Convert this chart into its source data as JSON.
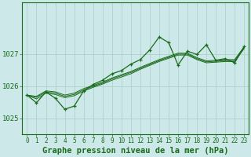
{
  "bg_color": "#cce8e8",
  "grid_color": "#aacccc",
  "line_color": "#1a6b1a",
  "title": "Graphe pression niveau de la mer (hPa)",
  "ylabel_ticks": [
    1025,
    1026,
    1027
  ],
  "xlim": [
    -0.5,
    23.5
  ],
  "ylim": [
    1024.5,
    1028.6
  ],
  "x": [
    0,
    1,
    2,
    3,
    4,
    5,
    6,
    7,
    8,
    9,
    10,
    11,
    12,
    13,
    14,
    15,
    16,
    17,
    18,
    19,
    20,
    21,
    22,
    23
  ],
  "main_series": [
    1025.72,
    1025.48,
    1025.82,
    1025.62,
    1025.28,
    1025.38,
    1025.85,
    1026.05,
    1026.18,
    1026.38,
    1026.48,
    1026.68,
    1026.82,
    1027.12,
    1027.52,
    1027.35,
    1026.65,
    1027.08,
    1026.98,
    1027.28,
    1026.8,
    1026.85,
    1026.72,
    1027.22
  ],
  "trend1": [
    1025.72,
    1025.68,
    1025.85,
    1025.82,
    1025.72,
    1025.78,
    1025.92,
    1026.02,
    1026.12,
    1026.25,
    1026.35,
    1026.45,
    1026.58,
    1026.7,
    1026.82,
    1026.92,
    1027.02,
    1027.02,
    1026.88,
    1026.78,
    1026.8,
    1026.82,
    1026.82,
    1027.22
  ],
  "trend2": [
    1025.72,
    1025.65,
    1025.82,
    1025.78,
    1025.68,
    1025.74,
    1025.88,
    1025.99,
    1026.09,
    1026.22,
    1026.32,
    1026.42,
    1026.55,
    1026.67,
    1026.79,
    1026.89,
    1026.99,
    1026.99,
    1026.85,
    1026.75,
    1026.77,
    1026.79,
    1026.79,
    1027.19
  ],
  "trend3": [
    1025.72,
    1025.6,
    1025.78,
    1025.74,
    1025.64,
    1025.7,
    1025.84,
    1025.96,
    1026.06,
    1026.18,
    1026.28,
    1026.38,
    1026.52,
    1026.64,
    1026.76,
    1026.86,
    1026.96,
    1026.96,
    1026.82,
    1026.72,
    1026.74,
    1026.76,
    1026.76,
    1027.16
  ],
  "title_fontsize": 7.5,
  "tick_fontsize": 6.5
}
